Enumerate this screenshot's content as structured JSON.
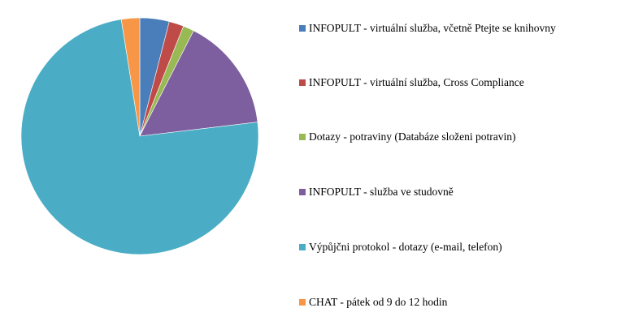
{
  "chart_data": {
    "type": "pie",
    "title": "",
    "legend_position": "right",
    "start_angle_deg": 0,
    "direction": "clockwise",
    "categories": [
      "INFOPULT - virtuální služba, včetně Ptejte se knihovny",
      "INFOPULT - virtuální služba,  Cross Compliance",
      "Dotazy - potraviny (Databáze složeni potravin)",
      "INFOPULT - služba ve studovně",
      "Výpůjčni protokol - dotazy (e-mail, telefon)",
      "CHAT - pátek od 9 do 12 hodin"
    ],
    "values": [
      4.0,
      2.0,
      1.5,
      15.6,
      74.4,
      2.5
    ],
    "colors": [
      "#4A7EBB",
      "#BE4B48",
      "#98B954",
      "#7D5FA0",
      "#4BACC6",
      "#F79646"
    ]
  },
  "legend": {
    "items": [
      {
        "label": "INFOPULT - virtuální služba, včetně Ptejte se knihovny",
        "color": "#4A7EBB"
      },
      {
        "label": "INFOPULT - virtuální služba,  Cross Compliance",
        "color": "#BE4B48"
      },
      {
        "label": "Dotazy - potraviny (Databáze složeni potravin)",
        "color": "#98B954"
      },
      {
        "label": "INFOPULT - služba ve studovně",
        "color": "#7D5FA0"
      },
      {
        "label": "Výpůjčni protokol - dotazy (e-mail, telefon)",
        "color": "#4BACC6"
      },
      {
        "label": "CHAT - pátek od 9 do 12 hodin",
        "color": "#F79646"
      }
    ]
  }
}
